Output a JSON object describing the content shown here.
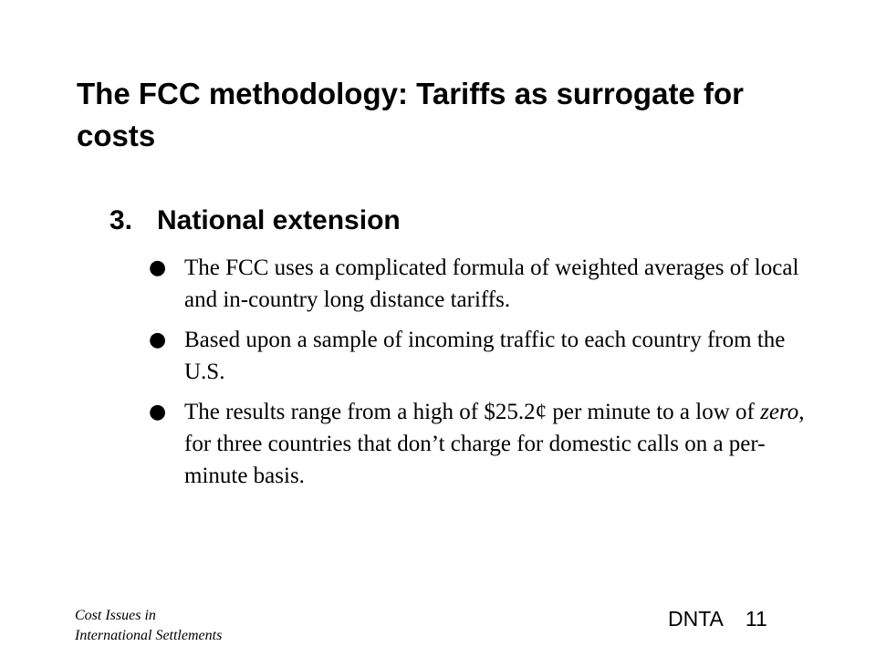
{
  "slide": {
    "title": "The FCC methodology: Tariffs as surrogate for costs",
    "subheading": {
      "number": "3.",
      "text": "National extension"
    },
    "bullets": [
      {
        "symbol": "●",
        "text_before": "The FCC uses a complicated formula of weighted averages of local and in-country long distance tariffs.",
        "italic": "",
        "text_after": ""
      },
      {
        "symbol": "●",
        "text_before": "Based upon a sample of incoming traffic to each country from the U.S.",
        "italic": "",
        "text_after": ""
      },
      {
        "symbol": "●",
        "text_before": "The results range from a high of $25.2¢ per minute to a low of ",
        "italic": "zero",
        "text_after": ", for three countries that don’t charge for domestic calls on a per-minute basis."
      }
    ],
    "footer": {
      "left_line1": "Cost Issues in",
      "left_line2": "International Settlements",
      "right_label": "DNTA",
      "page_number": "11"
    }
  }
}
